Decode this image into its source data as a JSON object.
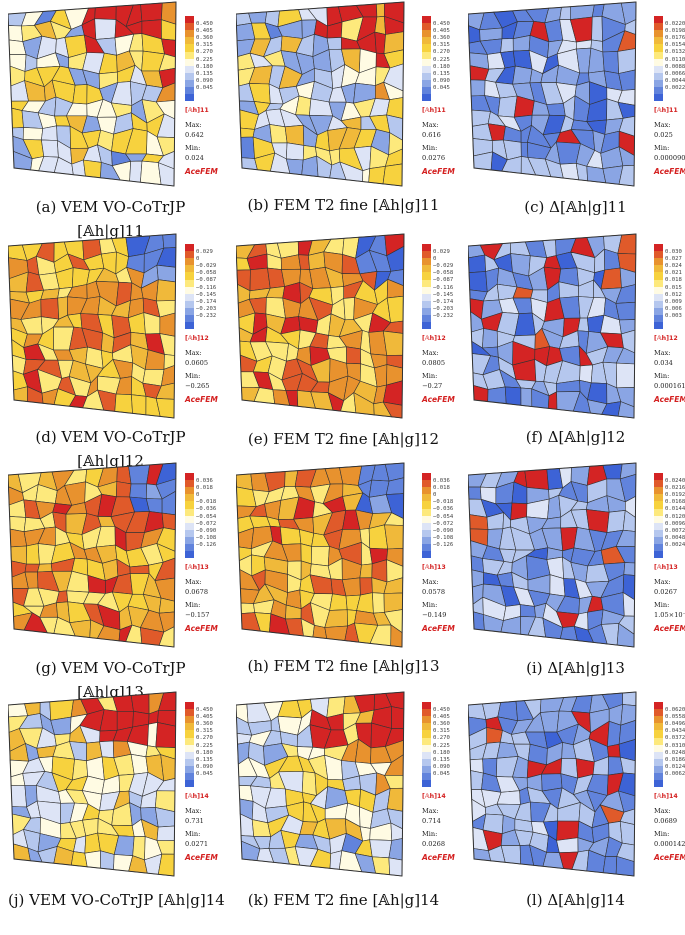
{
  "figure": {
    "brand": "AceFEM",
    "max_label": "Max:",
    "min_label": "Min:",
    "panels": [
      {
        "id": "a",
        "caption": [
          "(a) VEM VO-CoTrJP",
          "[𝔸h|g]11"
        ],
        "field": "[𝔸h]11",
        "ticks": [
          "0.450",
          "0.405",
          "0.360",
          "0.315",
          "0.270",
          "0.225",
          "0.180",
          "0.135",
          "0.090",
          "0.045"
        ],
        "max": "0.642",
        "min": "0.024",
        "pattern": "sym",
        "seed": 11
      },
      {
        "id": "b",
        "caption": [
          "(b) FEM T2 fine [𝔸h|g]11"
        ],
        "field": "[𝔸h]11",
        "ticks": [
          "0.450",
          "0.405",
          "0.360",
          "0.315",
          "0.270",
          "0.225",
          "0.180",
          "0.135",
          "0.090",
          "0.045"
        ],
        "max": "0.616",
        "min": "0.0276",
        "pattern": "sym",
        "seed": 23
      },
      {
        "id": "c",
        "caption": [
          "(c) Δ[𝔸h|g]11"
        ],
        "field": "[𝔸h]11",
        "ticks": [
          "0.0220",
          "0.0198",
          "0.0176",
          "0.0154",
          "0.0132",
          "0.0110",
          "0.0088",
          "0.0066",
          "0.0044",
          "0.0022"
        ],
        "max": "0.025",
        "min": "0.0000902",
        "pattern": "diff",
        "seed": 37
      },
      {
        "id": "d",
        "caption": [
          "(d) VEM VO-CoTrJP",
          "[𝔸h|g]12"
        ],
        "field": "[𝔸h]12",
        "ticks": [
          "0.029",
          "0",
          "−0.029",
          "−0.058",
          "−0.087",
          "−0.116",
          "−0.145",
          "−0.174",
          "−0.203",
          "−0.232"
        ],
        "max": "0.0605",
        "min": "−0.265",
        "pattern": "shear",
        "seed": 41
      },
      {
        "id": "e",
        "caption": [
          "(e) FEM T2 fine [𝔸h|g]12"
        ],
        "field": "[𝔸h]12",
        "ticks": [
          "0.029",
          "0",
          "−0.029",
          "−0.058",
          "−0.087",
          "−0.116",
          "−0.145",
          "−0.174",
          "−0.203",
          "−0.232"
        ],
        "max": "0.0805",
        "min": "−0.27",
        "pattern": "shear",
        "seed": 53
      },
      {
        "id": "f",
        "caption": [
          "(f) Δ[𝔸h|g]12"
        ],
        "field": "[𝔸h]12",
        "ticks": [
          "0.030",
          "0.027",
          "0.024",
          "0.021",
          "0.018",
          "0.015",
          "0.012",
          "0.009",
          "0.006",
          "0.003"
        ],
        "max": "0.034",
        "min": "0.000161",
        "pattern": "diff",
        "seed": 67
      },
      {
        "id": "g",
        "caption": [
          "(g) VEM VO-CoTrJP",
          "[𝔸h|g]13"
        ],
        "field": "[𝔸h]13",
        "ticks": [
          "0.036",
          "0.018",
          "0",
          "−0.018",
          "−0.036",
          "−0.054",
          "−0.072",
          "−0.090",
          "−0.108",
          "−0.126"
        ],
        "max": "0.0678",
        "min": "−0.157",
        "pattern": "shear",
        "seed": 71
      },
      {
        "id": "h",
        "caption": [
          "(h) FEM T2 fine [𝔸h|g]13"
        ],
        "field": "[𝔸h]13",
        "ticks": [
          "0.036",
          "0.018",
          "0",
          "−0.018",
          "−0.036",
          "−0.054",
          "−0.072",
          "−0.090",
          "−0.108",
          "−0.126"
        ],
        "max": "0.0578",
        "min": "−0.149",
        "pattern": "shear",
        "seed": 83
      },
      {
        "id": "i",
        "caption": [
          "(i) Δ[𝔸h|g]13"
        ],
        "field": "[𝔸h]13",
        "ticks": [
          "0.0240",
          "0.0216",
          "0.0192",
          "0.0168",
          "0.0144",
          "0.0120",
          "0.0096",
          "0.0072",
          "0.0048",
          "0.0024"
        ],
        "max": "0.0267",
        "min": "1.05×10⁻⁶",
        "pattern": "diff",
        "seed": 97
      },
      {
        "id": "j",
        "caption": [
          "(j) VEM VO-CoTrJP [𝔸h|g]14"
        ],
        "field": "[𝔸h]14",
        "ticks": [
          "0.450",
          "0.405",
          "0.360",
          "0.315",
          "0.270",
          "0.225",
          "0.180",
          "0.135",
          "0.090",
          "0.045"
        ],
        "max": "0.731",
        "min": "0.0271",
        "pattern": "sym",
        "seed": 101
      },
      {
        "id": "k",
        "caption": [
          "(k) FEM T2 fine [𝔸h|g]14"
        ],
        "field": "[𝔸h]14",
        "ticks": [
          "0.450",
          "0.405",
          "0.360",
          "0.315",
          "0.270",
          "0.225",
          "0.180",
          "0.135",
          "0.090",
          "0.045"
        ],
        "max": "0.714",
        "min": "0.0268",
        "pattern": "sym",
        "seed": 113
      },
      {
        "id": "l",
        "caption": [
          "(l) Δ[𝔸h|g]14"
        ],
        "field": "[𝔸h]14",
        "ticks": [
          "0.0620",
          "0.0558",
          "0.0496",
          "0.0434",
          "0.0372",
          "0.0310",
          "0.0248",
          "0.0186",
          "0.0124",
          "0.0062"
        ],
        "max": "0.0689",
        "min": "0.000142",
        "pattern": "diff",
        "seed": 127
      }
    ]
  },
  "colors": {
    "colormap": [
      "#3d63d6",
      "#6183dc",
      "#8aa5e4",
      "#b5c7ee",
      "#dde4f6",
      "#fffbe3",
      "#fde97c",
      "#f7d23e",
      "#f0b93a",
      "#e8922e",
      "#e05a2a",
      "#d42424"
    ],
    "edge": "#333333",
    "accent": "#d42020"
  }
}
